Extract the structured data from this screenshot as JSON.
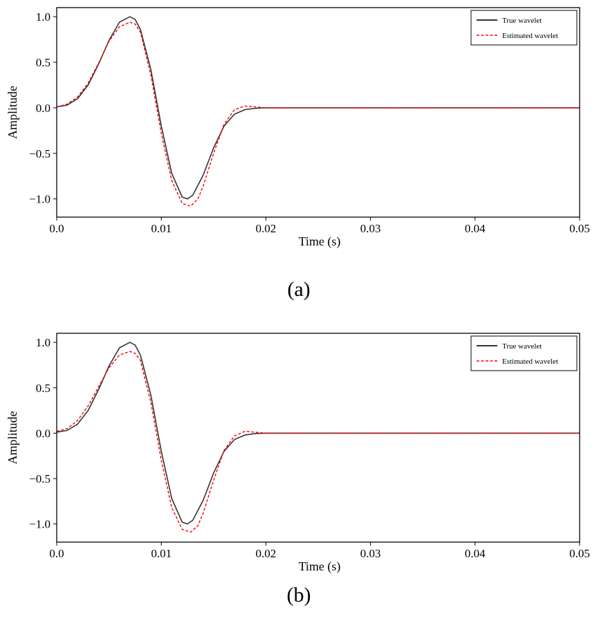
{
  "chart_data": [
    {
      "type": "line",
      "panel_label": "(a)",
      "xlabel": "Time (s)",
      "ylabel": "Amplitude",
      "xlim": [
        0,
        0.05
      ],
      "ylim": [
        -1.2,
        1.1
      ],
      "xticks": [
        0.0,
        0.01,
        0.02,
        0.03,
        0.04,
        0.05
      ],
      "xtick_labels": [
        "0.0",
        "0.01",
        "0.02",
        "0.03",
        "0.04",
        "0.05"
      ],
      "yticks": [
        1.0,
        0.5,
        0.0,
        -0.5,
        -1.0
      ],
      "ytick_labels": [
        "1.0",
        "0.5",
        "0.0",
        "−0.5",
        "−1.0"
      ],
      "legend_position": "top-right",
      "series": [
        {
          "name": "True wavelet",
          "color": "#333333",
          "style": "solid",
          "x": [
            0.0,
            0.001,
            0.002,
            0.003,
            0.004,
            0.005,
            0.006,
            0.007,
            0.0075,
            0.008,
            0.009,
            0.01,
            0.011,
            0.012,
            0.0125,
            0.013,
            0.014,
            0.015,
            0.016,
            0.017,
            0.018,
            0.019,
            0.02,
            0.025,
            0.03,
            0.04,
            0.05
          ],
          "y": [
            0.01,
            0.03,
            0.1,
            0.25,
            0.48,
            0.74,
            0.94,
            1.0,
            0.97,
            0.86,
            0.42,
            -0.2,
            -0.72,
            -0.98,
            -1.0,
            -0.96,
            -0.74,
            -0.44,
            -0.2,
            -0.07,
            -0.02,
            -0.005,
            0.0,
            0.0,
            0.0,
            0.0,
            0.0
          ]
        },
        {
          "name": "Estimated wavelet",
          "color": "#ff0000",
          "style": "dashed",
          "x": [
            0.0,
            0.001,
            0.002,
            0.003,
            0.004,
            0.005,
            0.006,
            0.007,
            0.0075,
            0.008,
            0.009,
            0.01,
            0.011,
            0.012,
            0.0128,
            0.0135,
            0.014,
            0.015,
            0.016,
            0.017,
            0.018,
            0.019,
            0.02,
            0.025,
            0.03,
            0.04,
            0.05
          ],
          "y": [
            0.01,
            0.04,
            0.12,
            0.27,
            0.49,
            0.73,
            0.89,
            0.94,
            0.92,
            0.83,
            0.36,
            -0.28,
            -0.8,
            -1.05,
            -1.08,
            -1.0,
            -0.86,
            -0.5,
            -0.18,
            -0.02,
            0.02,
            0.01,
            0.0,
            0.0,
            0.0,
            0.0,
            0.0
          ]
        }
      ]
    },
    {
      "type": "line",
      "panel_label": "(b)",
      "xlabel": "Time (s)",
      "ylabel": "Amplitude",
      "xlim": [
        0,
        0.05
      ],
      "ylim": [
        -1.2,
        1.1
      ],
      "xticks": [
        0.0,
        0.01,
        0.02,
        0.03,
        0.04,
        0.05
      ],
      "xtick_labels": [
        "0.0",
        "0.01",
        "0.02",
        "0.03",
        "0.04",
        "0.05"
      ],
      "yticks": [
        1.0,
        0.5,
        0.0,
        -0.5,
        -1.0
      ],
      "ytick_labels": [
        "1.0",
        "0.5",
        "0.0",
        "−0.5",
        "−1.0"
      ],
      "legend_position": "top-right",
      "series": [
        {
          "name": "True wavelet",
          "color": "#333333",
          "style": "solid",
          "x": [
            0.0,
            0.001,
            0.002,
            0.003,
            0.004,
            0.005,
            0.006,
            0.007,
            0.0075,
            0.008,
            0.009,
            0.01,
            0.011,
            0.012,
            0.0125,
            0.013,
            0.014,
            0.015,
            0.016,
            0.017,
            0.018,
            0.019,
            0.02,
            0.025,
            0.03,
            0.04,
            0.05
          ],
          "y": [
            0.01,
            0.03,
            0.1,
            0.25,
            0.48,
            0.74,
            0.94,
            1.0,
            0.97,
            0.86,
            0.42,
            -0.2,
            -0.72,
            -0.98,
            -1.0,
            -0.96,
            -0.74,
            -0.44,
            -0.2,
            -0.07,
            -0.02,
            -0.005,
            0.0,
            0.0,
            0.0,
            0.0,
            0.0
          ]
        },
        {
          "name": "Estimated wavelet",
          "color": "#ff0000",
          "style": "dashed",
          "x": [
            0.0,
            0.001,
            0.002,
            0.003,
            0.004,
            0.005,
            0.006,
            0.007,
            0.0075,
            0.008,
            0.009,
            0.01,
            0.011,
            0.012,
            0.0128,
            0.0135,
            0.014,
            0.015,
            0.016,
            0.017,
            0.018,
            0.019,
            0.02,
            0.025,
            0.03,
            0.04,
            0.05
          ],
          "y": [
            0.02,
            0.05,
            0.14,
            0.3,
            0.51,
            0.72,
            0.86,
            0.9,
            0.88,
            0.8,
            0.34,
            -0.3,
            -0.82,
            -1.06,
            -1.09,
            -1.02,
            -0.88,
            -0.52,
            -0.19,
            -0.03,
            0.02,
            0.01,
            0.0,
            0.0,
            0.0,
            0.0,
            0.0
          ]
        }
      ]
    }
  ]
}
